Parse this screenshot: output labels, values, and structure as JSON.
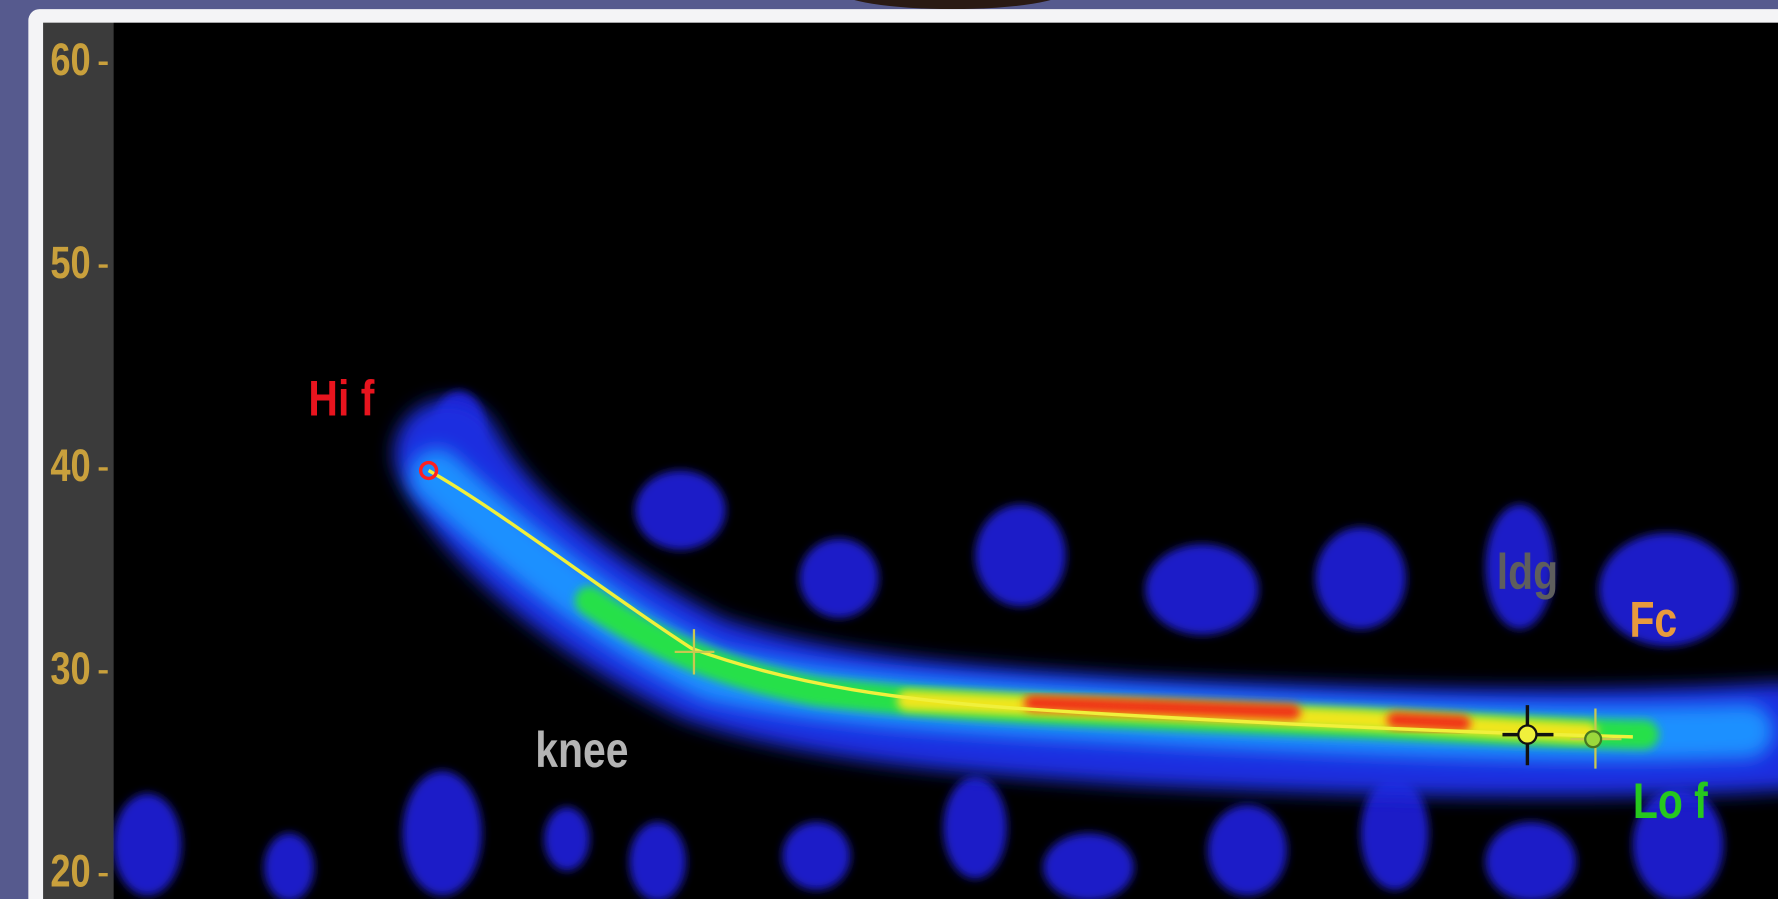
{
  "chart_data": {
    "type": "spectrogram",
    "ylim": [
      18.8,
      62
    ],
    "yticks": [
      20,
      30,
      40,
      50,
      60
    ],
    "tick_color": "#c9a03c",
    "annotations": [
      {
        "text": "Hi f",
        "color": "#e8141e"
      },
      {
        "text": "knee",
        "color": "#b4b4b4"
      },
      {
        "text": "ldg",
        "color": "#5e5e5e"
      },
      {
        "text": "Fc",
        "color": "#e89a3c"
      },
      {
        "text": "Lo f",
        "color": "#26c81e"
      }
    ]
  }
}
